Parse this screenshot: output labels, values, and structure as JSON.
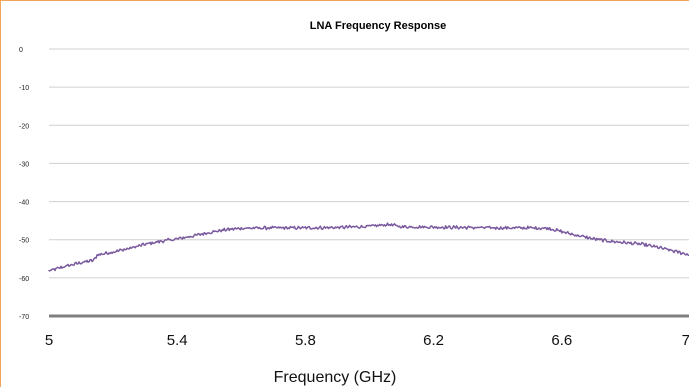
{
  "chart_data": {
    "type": "line",
    "title": "LNA Frequency Response",
    "xlabel": "Frequency (GHz)",
    "ylabel": "",
    "xlim": [
      5,
      7
    ],
    "ylim": [
      -70,
      0
    ],
    "xticks": [
      "5",
      "5.4",
      "5.8",
      "6.2",
      "6.6",
      "7"
    ],
    "yticks": [
      "0",
      "-10",
      "-20",
      "-30",
      "-40",
      "-50",
      "-60",
      "-70"
    ],
    "grid": true,
    "legend": "none",
    "series": [
      {
        "color": "#7a5a9e",
        "points": [
          [
            5.0,
            -58.2
          ],
          [
            5.05,
            -57.0
          ],
          [
            5.1,
            -56.0
          ],
          [
            5.14,
            -55.4
          ],
          [
            5.15,
            -54.0
          ],
          [
            5.2,
            -53.2
          ],
          [
            5.25,
            -52.3
          ],
          [
            5.3,
            -51.2
          ],
          [
            5.35,
            -50.4
          ],
          [
            5.4,
            -49.8
          ],
          [
            5.45,
            -49.0
          ],
          [
            5.5,
            -48.1
          ],
          [
            5.55,
            -47.4
          ],
          [
            5.6,
            -47.0
          ],
          [
            5.7,
            -46.9
          ],
          [
            5.8,
            -46.9
          ],
          [
            5.9,
            -46.8
          ],
          [
            6.0,
            -46.5
          ],
          [
            6.06,
            -46.0
          ],
          [
            6.1,
            -46.6
          ],
          [
            6.2,
            -46.7
          ],
          [
            6.3,
            -46.8
          ],
          [
            6.4,
            -46.9
          ],
          [
            6.5,
            -46.9
          ],
          [
            6.56,
            -47.0
          ],
          [
            6.6,
            -47.9
          ],
          [
            6.65,
            -48.9
          ],
          [
            6.7,
            -49.8
          ],
          [
            6.75,
            -50.4
          ],
          [
            6.8,
            -50.8
          ],
          [
            6.85,
            -51.2
          ],
          [
            6.9,
            -52.0
          ],
          [
            6.95,
            -53.0
          ],
          [
            7.0,
            -54.0
          ]
        ]
      }
    ]
  }
}
